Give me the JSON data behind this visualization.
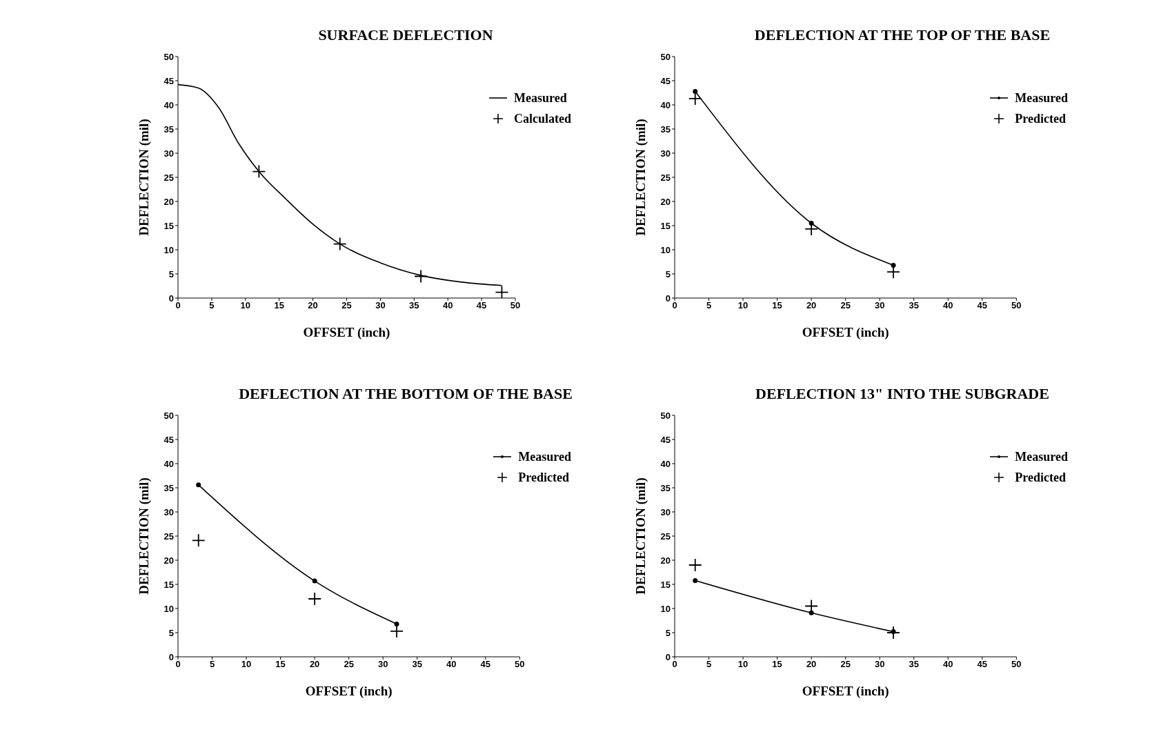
{
  "chart_data": [
    {
      "type": "line",
      "title": "SURFACE DEFLECTION",
      "xlabel": "OFFSET    (inch)",
      "ylabel": "DEFLECTION (mil)",
      "xlim": [
        0,
        50
      ],
      "xticks": [
        0,
        5,
        10,
        15,
        20,
        25,
        30,
        35,
        40,
        45,
        50
      ],
      "ylim": [
        0,
        50
      ],
      "yticks": [
        0,
        5,
        10,
        15,
        20,
        25,
        30,
        35,
        40,
        45,
        50
      ],
      "legend": "top right",
      "series": [
        {
          "name": "Measured",
          "type": "line",
          "color": "#000000",
          "marker": "none",
          "x": [
            0,
            3,
            6,
            9,
            12,
            16,
            20,
            24,
            30,
            36,
            42,
            48
          ],
          "values": [
            44.2,
            43.5,
            39.5,
            32,
            26.2,
            20.5,
            15.3,
            11.2,
            7.3,
            4.7,
            3.3,
            2.6
          ]
        },
        {
          "name": "Calculated",
          "type": "scatter",
          "color": "#000000",
          "marker": "cross",
          "x": [
            12,
            24,
            36,
            48
          ],
          "values": [
            26.2,
            11.2,
            4.5,
            1.2
          ]
        }
      ]
    },
    {
      "type": "line",
      "title": "DEFLECTION AT THE TOP OF THE BASE",
      "xlabel": "OFFSET    (inch)",
      "ylabel": "DEFLECTION (mil)",
      "xlim": [
        0,
        50
      ],
      "xticks": [
        0,
        5,
        10,
        15,
        20,
        25,
        30,
        35,
        40,
        45,
        50
      ],
      "ylim": [
        0,
        50
      ],
      "yticks": [
        0,
        5,
        10,
        15,
        20,
        25,
        30,
        35,
        40,
        45,
        50
      ],
      "legend": "top right",
      "series": [
        {
          "name": "Measured",
          "type": "line",
          "color": "#000000",
          "marker": "circle",
          "x": [
            3,
            20,
            32
          ],
          "values": [
            42.8,
            15.5,
            6.8
          ]
        },
        {
          "name": "Predicted",
          "type": "scatter",
          "color": "#000000",
          "marker": "cross",
          "x": [
            3,
            20,
            32
          ],
          "values": [
            41.3,
            14.3,
            5.4
          ]
        }
      ]
    },
    {
      "type": "line",
      "title": "DEFLECTION AT THE BOTTOM OF THE BASE",
      "xlabel": "OFFSET    (inch)",
      "ylabel": "DEFLECTION (mil)",
      "xlim": [
        0,
        50
      ],
      "xticks": [
        0,
        5,
        10,
        15,
        20,
        25,
        30,
        35,
        40,
        45,
        50
      ],
      "ylim": [
        0,
        50
      ],
      "yticks": [
        0,
        5,
        10,
        15,
        20,
        25,
        30,
        35,
        40,
        45,
        50
      ],
      "legend": "top right",
      "series": [
        {
          "name": "Measured",
          "type": "line",
          "color": "#000000",
          "marker": "circle",
          "x": [
            3,
            20,
            32
          ],
          "values": [
            35.6,
            15.7,
            6.8
          ]
        },
        {
          "name": "Predicted",
          "type": "scatter",
          "color": "#000000",
          "marker": "cross",
          "x": [
            3,
            20,
            32
          ],
          "values": [
            24.1,
            12,
            5.3
          ]
        }
      ]
    },
    {
      "type": "line",
      "title": "DEFLECTION 13\" INTO THE SUBGRADE",
      "xlabel": "OFFSET    (inch)",
      "ylabel": "DEFLECTION (mil)",
      "xlim": [
        0,
        50
      ],
      "xticks": [
        0,
        5,
        10,
        15,
        20,
        25,
        30,
        35,
        40,
        45,
        50
      ],
      "ylim": [
        0,
        50
      ],
      "yticks": [
        0,
        5,
        10,
        15,
        20,
        25,
        30,
        35,
        40,
        45,
        50
      ],
      "legend": "top right",
      "series": [
        {
          "name": "Measured",
          "type": "line",
          "color": "#000000",
          "marker": "circle",
          "x": [
            3,
            20,
            32
          ],
          "values": [
            15.8,
            9.1,
            5.2
          ]
        },
        {
          "name": "Predicted",
          "type": "scatter",
          "color": "#000000",
          "marker": "cross",
          "x": [
            3,
            20,
            32
          ],
          "values": [
            19,
            10.5,
            5
          ]
        }
      ]
    }
  ]
}
